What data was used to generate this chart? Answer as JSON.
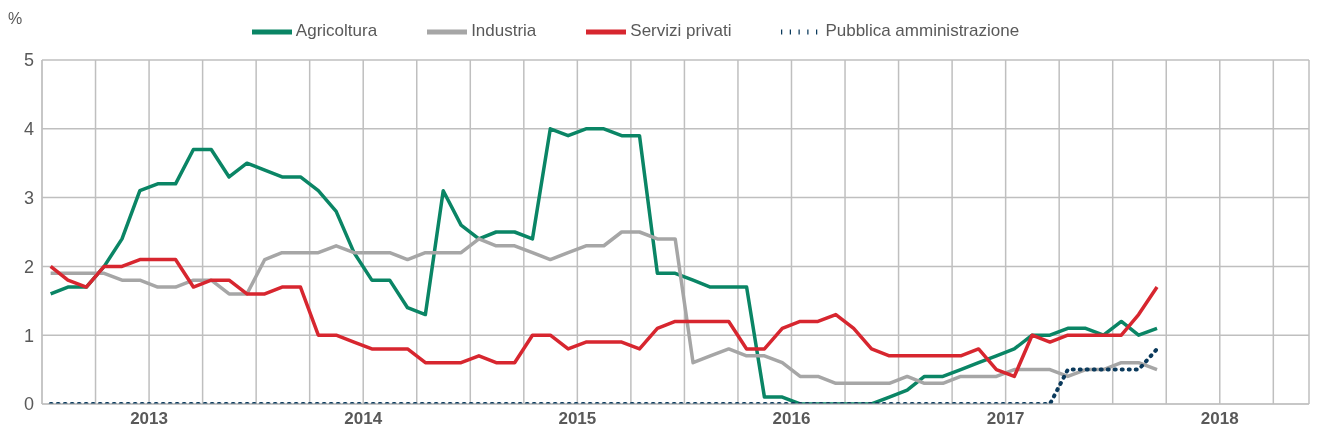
{
  "chart_data": {
    "type": "line",
    "ylabel": "%",
    "legend": "top",
    "grid": true,
    "marker": "none",
    "x": [
      "2013-01-16",
      "2013-02-15",
      "2013-03-16",
      "2013-04-16",
      "2013-05-16",
      "2013-06-16",
      "2013-07-16",
      "2013-08-16",
      "2013-09-16",
      "2013-10-16",
      "2013-11-16",
      "2013-12-16",
      "2014-01-16",
      "2014-02-15",
      "2014-03-16",
      "2014-04-16",
      "2014-05-16",
      "2014-06-16",
      "2014-07-16",
      "2014-08-16",
      "2014-09-16",
      "2014-10-16",
      "2014-11-16",
      "2014-12-16",
      "2015-01-16",
      "2015-02-15",
      "2015-03-16",
      "2015-04-16",
      "2015-05-16",
      "2015-06-16",
      "2015-07-16",
      "2015-08-16",
      "2015-09-16",
      "2015-10-16",
      "2015-11-16",
      "2015-12-16",
      "2016-01-16",
      "2016-02-15",
      "2016-03-16",
      "2016-04-16",
      "2016-05-16",
      "2016-06-16",
      "2016-07-16",
      "2016-08-16",
      "2016-09-16",
      "2016-10-16",
      "2016-11-16",
      "2016-12-16",
      "2017-01-16",
      "2017-02-15",
      "2017-03-16",
      "2017-04-16",
      "2017-05-16",
      "2017-06-16",
      "2017-07-16",
      "2017-08-16",
      "2017-09-16",
      "2017-10-16",
      "2017-11-16",
      "2017-12-16",
      "2018-01-16",
      "2018-02-15",
      "2018-03-16"
    ],
    "xlim": [
      "2013-01-01",
      "2018-12-01"
    ],
    "xticks": [
      {
        "value": "2013-01-01",
        "label": null
      },
      {
        "value": "2013-04-01",
        "label": null
      },
      {
        "value": "2013-07-01",
        "label": "2013"
      },
      {
        "value": "2013-10-01",
        "label": null
      },
      {
        "value": "2014-01-01",
        "label": null
      },
      {
        "value": "2014-04-01",
        "label": null
      },
      {
        "value": "2014-07-01",
        "label": "2014"
      },
      {
        "value": "2014-10-01",
        "label": null
      },
      {
        "value": "2015-01-01",
        "label": null
      },
      {
        "value": "2015-04-01",
        "label": null
      },
      {
        "value": "2015-07-01",
        "label": "2015"
      },
      {
        "value": "2015-10-01",
        "label": null
      },
      {
        "value": "2016-01-01",
        "label": null
      },
      {
        "value": "2016-04-01",
        "label": null
      },
      {
        "value": "2016-07-01",
        "label": "2016"
      },
      {
        "value": "2016-10-01",
        "label": null
      },
      {
        "value": "2017-01-01",
        "label": null
      },
      {
        "value": "2017-04-01",
        "label": null
      },
      {
        "value": "2017-07-01",
        "label": "2017"
      },
      {
        "value": "2017-10-01",
        "label": null
      },
      {
        "value": "2018-01-01",
        "label": null
      },
      {
        "value": "2018-04-01",
        "label": null
      },
      {
        "value": "2018-07-01",
        "label": "2018"
      },
      {
        "value": "2018-10-01",
        "label": null
      }
    ],
    "ylim": [
      0,
      5
    ],
    "yticks": [
      0,
      1,
      2,
      3,
      4,
      5
    ],
    "series": [
      {
        "name": "Agricoltura",
        "color": "#0a8565",
        "line_style": "solid",
        "values": [
          1.6,
          1.7,
          1.7,
          2.0,
          2.4,
          3.1,
          3.2,
          3.2,
          3.7,
          3.7,
          3.3,
          3.5,
          3.4,
          3.3,
          3.3,
          3.1,
          2.8,
          2.2,
          1.8,
          1.8,
          1.4,
          1.3,
          3.1,
          2.6,
          2.4,
          2.5,
          2.5,
          2.4,
          4.0,
          3.9,
          4.0,
          4.0,
          3.9,
          3.9,
          1.9,
          1.9,
          1.8,
          1.7,
          1.7,
          1.7,
          0.1,
          0.1,
          0,
          0,
          0,
          0,
          0,
          0.1,
          0.2,
          0.4,
          0.4,
          0.5,
          0.6,
          0.7,
          0.8,
          1.0,
          1.0,
          1.1,
          1.1,
          1.0,
          1.2,
          1.0,
          1.1
        ]
      },
      {
        "name": "Industria",
        "color": "#a6a6a6",
        "line_style": "solid",
        "values": [
          1.9,
          1.9,
          1.9,
          1.9,
          1.8,
          1.8,
          1.7,
          1.7,
          1.8,
          1.8,
          1.6,
          1.6,
          2.1,
          2.2,
          2.2,
          2.2,
          2.3,
          2.2,
          2.2,
          2.2,
          2.1,
          2.2,
          2.2,
          2.2,
          2.4,
          2.3,
          2.3,
          2.2,
          2.1,
          2.2,
          2.3,
          2.3,
          2.5,
          2.5,
          2.4,
          2.4,
          0.6,
          0.7,
          0.8,
          0.7,
          0.7,
          0.6,
          0.4,
          0.4,
          0.3,
          0.3,
          0.3,
          0.3,
          0.4,
          0.3,
          0.3,
          0.4,
          0.4,
          0.4,
          0.5,
          0.5,
          0.5,
          0.4,
          0.5,
          0.5,
          0.6,
          0.6,
          0.5
        ]
      },
      {
        "name": "Servizi privati",
        "color": "#d7262f",
        "line_style": "solid",
        "values": [
          2.0,
          1.8,
          1.7,
          2.0,
          2.0,
          2.1,
          2.1,
          2.1,
          1.7,
          1.8,
          1.8,
          1.6,
          1.6,
          1.7,
          1.7,
          1.0,
          1.0,
          0.9,
          0.8,
          0.8,
          0.8,
          0.6,
          0.6,
          0.6,
          0.7,
          0.6,
          0.6,
          1.0,
          1.0,
          0.8,
          0.9,
          0.9,
          0.9,
          0.8,
          1.1,
          1.2,
          1.2,
          1.2,
          1.2,
          0.8,
          0.8,
          1.1,
          1.2,
          1.2,
          1.3,
          1.1,
          0.8,
          0.7,
          0.7,
          0.7,
          0.7,
          0.7,
          0.8,
          0.5,
          0.4,
          1.0,
          0.9,
          1.0,
          1.0,
          1.0,
          1.0,
          1.3,
          1.7
        ]
      },
      {
        "name": "Pubblica amministrazione",
        "color": "#0b3a5c",
        "line_style": "dotted",
        "values": [
          0,
          0,
          0,
          0,
          0,
          0,
          0,
          0,
          0,
          0,
          0,
          0,
          0,
          0,
          0,
          0,
          0,
          0,
          0,
          0,
          0,
          0,
          0,
          0,
          0,
          0,
          0,
          0,
          0,
          0,
          0,
          0,
          0,
          0,
          0,
          0,
          0,
          0,
          0,
          0,
          0,
          0,
          0,
          0,
          0,
          0,
          0,
          0,
          0,
          0,
          0,
          0,
          0,
          0,
          0,
          0,
          0,
          0.5,
          0.5,
          0.5,
          0.5,
          0.5,
          0.8
        ]
      }
    ]
  }
}
